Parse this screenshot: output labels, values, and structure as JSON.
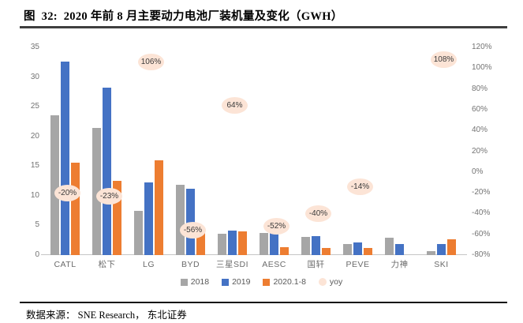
{
  "title": "图  32:  2020 年前 8 月主要动力电池厂装机量及变化（GWH）",
  "source": "数据来源： SNE Research， 东北证券",
  "colors": {
    "bar2018": "#a6a6a6",
    "bar2019": "#4472c4",
    "bar2020": "#ed7d31",
    "yoy_bubble": "#fce4d6",
    "axis_text": "#737373",
    "bubble_text": "#3a3a3a"
  },
  "chart_data": {
    "type": "bar",
    "categories": [
      "CATL",
      "松下",
      "LG",
      "BYD",
      "三星SDI",
      "AESC",
      "国轩",
      "PEVE",
      "力神",
      "SKI"
    ],
    "series": [
      {
        "name": "2018",
        "color_key": "bar2018",
        "values": [
          23.5,
          21.4,
          7.5,
          11.8,
          3.6,
          3.7,
          3.1,
          1.8,
          2.9,
          0.7
        ]
      },
      {
        "name": "2019",
        "color_key": "bar2019",
        "values": [
          32.6,
          28.2,
          12.3,
          11.2,
          4.1,
          3.9,
          3.2,
          2.1,
          1.9,
          1.9
        ]
      },
      {
        "name": "2020.1-8",
        "color_key": "bar2020",
        "values": [
          15.6,
          12.5,
          16.0,
          3.7,
          4.0,
          1.3,
          1.2,
          1.2,
          null,
          2.6
        ]
      }
    ],
    "yoy": {
      "name": "yoy",
      "values": [
        -20,
        -23,
        106,
        -56,
        64,
        -52,
        -40,
        -14,
        null,
        108
      ],
      "labels": [
        "-20%",
        "-23%",
        "106%",
        "-56%",
        "64%",
        "-52%",
        "-40%",
        "-14%",
        null,
        "108%"
      ]
    },
    "left_axis": {
      "ticks": [
        35,
        30,
        25,
        20,
        15,
        10,
        5,
        0
      ],
      "min": 0,
      "max": 35
    },
    "right_axis": {
      "ticks": [
        "120%",
        "100%",
        "80%",
        "60%",
        "40%",
        "20%",
        "0%",
        "-20%",
        "-40%",
        "-60%",
        "-80%"
      ],
      "min": -80,
      "max": 120
    },
    "legend": [
      "2018",
      "2019",
      "2020.1-8",
      "yoy"
    ],
    "title": "2020 年前 8 月主要动力电池厂装机量及变化（GWH）",
    "grid": false,
    "legend_position": "bottom"
  }
}
